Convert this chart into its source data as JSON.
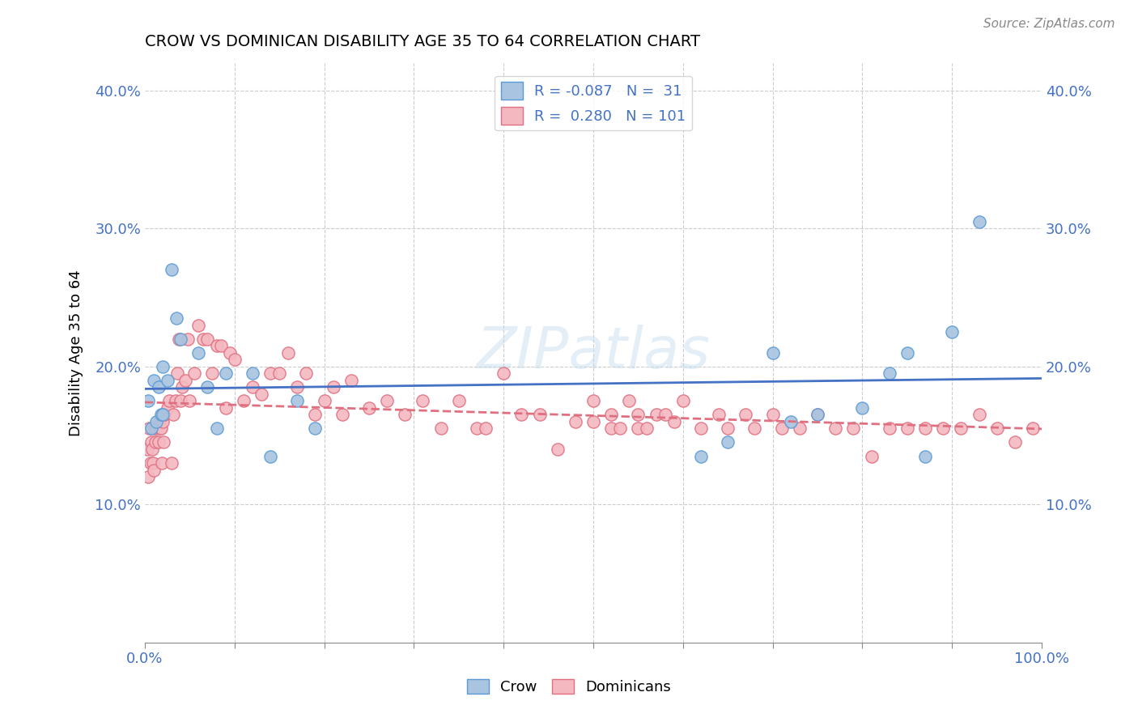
{
  "title": "CROW VS DOMINICAN DISABILITY AGE 35 TO 64 CORRELATION CHART",
  "source": "Source: ZipAtlas.com",
  "xlabel": "",
  "ylabel": "Disability Age 35 to 64",
  "xlim": [
    0.0,
    1.0
  ],
  "ylim": [
    0.0,
    0.42
  ],
  "xticks": [
    0.0,
    0.1,
    0.2,
    0.3,
    0.4,
    0.5,
    0.6,
    0.7,
    0.8,
    0.9,
    1.0
  ],
  "xticklabels": [
    "0.0%",
    "",
    "",
    "",
    "",
    "",
    "",
    "",
    "",
    "",
    "100.0%"
  ],
  "yticks": [
    0.0,
    0.1,
    0.2,
    0.3,
    0.4
  ],
  "yticklabels": [
    "",
    "10.0%",
    "20.0%",
    "30.0%",
    "40.0%"
  ],
  "crow_R": -0.087,
  "crow_N": 31,
  "dominican_R": 0.28,
  "dominican_N": 101,
  "crow_color": "#a8c4e0",
  "crow_edge_color": "#5b9bd5",
  "dominican_color": "#f4b8c1",
  "dominican_edge_color": "#e07080",
  "crow_line_color": "#4472c4",
  "dominican_line_color": "#e07080",
  "watermark": "ZIPatlas",
  "crow_x": [
    0.004,
    0.007,
    0.01,
    0.013,
    0.015,
    0.018,
    0.02,
    0.02,
    0.025,
    0.03,
    0.035,
    0.04,
    0.06,
    0.07,
    0.08,
    0.09,
    0.12,
    0.14,
    0.17,
    0.19,
    0.62,
    0.65,
    0.7,
    0.72,
    0.75,
    0.8,
    0.83,
    0.85,
    0.87,
    0.9,
    0.93
  ],
  "crow_y": [
    0.175,
    0.155,
    0.19,
    0.16,
    0.185,
    0.165,
    0.165,
    0.2,
    0.19,
    0.27,
    0.235,
    0.22,
    0.21,
    0.185,
    0.155,
    0.195,
    0.195,
    0.135,
    0.175,
    0.155,
    0.135,
    0.145,
    0.21,
    0.16,
    0.165,
    0.17,
    0.195,
    0.21,
    0.135,
    0.225,
    0.305
  ],
  "dominican_x": [
    0.003,
    0.004,
    0.005,
    0.006,
    0.007,
    0.008,
    0.009,
    0.01,
    0.011,
    0.012,
    0.013,
    0.015,
    0.016,
    0.017,
    0.018,
    0.019,
    0.02,
    0.021,
    0.022,
    0.025,
    0.027,
    0.03,
    0.032,
    0.034,
    0.036,
    0.038,
    0.04,
    0.042,
    0.045,
    0.048,
    0.05,
    0.055,
    0.06,
    0.065,
    0.07,
    0.075,
    0.08,
    0.085,
    0.09,
    0.095,
    0.1,
    0.11,
    0.12,
    0.13,
    0.14,
    0.15,
    0.16,
    0.17,
    0.18,
    0.19,
    0.2,
    0.21,
    0.22,
    0.23,
    0.25,
    0.27,
    0.29,
    0.31,
    0.33,
    0.35,
    0.37,
    0.38,
    0.4,
    0.42,
    0.44,
    0.46,
    0.48,
    0.5,
    0.52,
    0.54,
    0.55,
    0.57,
    0.59,
    0.6,
    0.62,
    0.64,
    0.65,
    0.67,
    0.68,
    0.7,
    0.71,
    0.73,
    0.75,
    0.77,
    0.79,
    0.81,
    0.83,
    0.85,
    0.87,
    0.89,
    0.91,
    0.93,
    0.95,
    0.97,
    0.99,
    0.5,
    0.52,
    0.53,
    0.55,
    0.56,
    0.58
  ],
  "dominican_y": [
    0.14,
    0.12,
    0.155,
    0.13,
    0.145,
    0.14,
    0.13,
    0.125,
    0.155,
    0.145,
    0.155,
    0.145,
    0.16,
    0.155,
    0.155,
    0.13,
    0.16,
    0.145,
    0.165,
    0.17,
    0.175,
    0.13,
    0.165,
    0.175,
    0.195,
    0.22,
    0.175,
    0.185,
    0.19,
    0.22,
    0.175,
    0.195,
    0.23,
    0.22,
    0.22,
    0.195,
    0.215,
    0.215,
    0.17,
    0.21,
    0.205,
    0.175,
    0.185,
    0.18,
    0.195,
    0.195,
    0.21,
    0.185,
    0.195,
    0.165,
    0.175,
    0.185,
    0.165,
    0.19,
    0.17,
    0.175,
    0.165,
    0.175,
    0.155,
    0.175,
    0.155,
    0.155,
    0.195,
    0.165,
    0.165,
    0.14,
    0.16,
    0.175,
    0.155,
    0.175,
    0.155,
    0.165,
    0.16,
    0.175,
    0.155,
    0.165,
    0.155,
    0.165,
    0.155,
    0.165,
    0.155,
    0.155,
    0.165,
    0.155,
    0.155,
    0.135,
    0.155,
    0.155,
    0.155,
    0.155,
    0.155,
    0.165,
    0.155,
    0.145,
    0.155,
    0.16,
    0.165,
    0.155,
    0.165,
    0.155,
    0.165
  ]
}
